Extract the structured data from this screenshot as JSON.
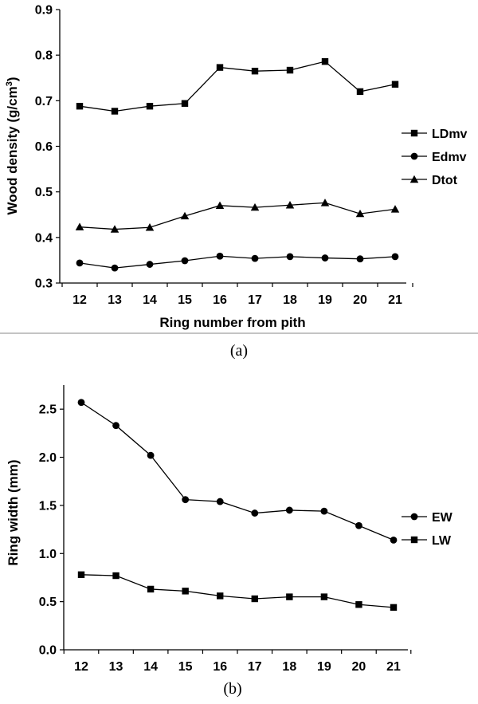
{
  "chart_data": [
    {
      "type": "line",
      "caption": "(a)",
      "xlabel": "Ring number from pith",
      "ylabel": "Wood density (g/cm",
      "ylabel_sup": "3",
      "ylabel_close": ")",
      "categories": [
        "12",
        "13",
        "14",
        "15",
        "16",
        "17",
        "18",
        "19",
        "20",
        "21"
      ],
      "ylim": [
        0.3,
        0.9
      ],
      "yticks": [
        "0.3",
        "0.4",
        "0.5",
        "0.6",
        "0.7",
        "0.8",
        "0.9"
      ],
      "grid": false,
      "legend_position": "right",
      "series": [
        {
          "name": "LDmv",
          "marker": "square",
          "values": [
            0.688,
            0.677,
            0.688,
            0.694,
            0.773,
            0.765,
            0.767,
            0.786,
            0.72,
            0.736
          ]
        },
        {
          "name": "Edmv",
          "marker": "circle",
          "values": [
            0.344,
            0.333,
            0.341,
            0.349,
            0.359,
            0.354,
            0.358,
            0.355,
            0.353,
            0.358
          ]
        },
        {
          "name": "Dtot",
          "marker": "triangle",
          "values": [
            0.423,
            0.418,
            0.422,
            0.447,
            0.47,
            0.466,
            0.471,
            0.476,
            0.452,
            0.462
          ]
        }
      ]
    },
    {
      "type": "line",
      "caption": "(b)",
      "xlabel": "",
      "ylabel": "Ring width (mm)",
      "categories": [
        "12",
        "13",
        "14",
        "15",
        "16",
        "17",
        "18",
        "19",
        "20",
        "21"
      ],
      "ylim": [
        0.0,
        2.75
      ],
      "yticks": [
        "0.0",
        "0.5",
        "1.0",
        "1.5",
        "2.0",
        "2.5"
      ],
      "grid": false,
      "legend_position": "right",
      "series": [
        {
          "name": "EW",
          "marker": "circle",
          "values": [
            2.57,
            2.33,
            2.02,
            1.56,
            1.54,
            1.42,
            1.45,
            1.44,
            1.29,
            1.14
          ]
        },
        {
          "name": "LW",
          "marker": "square",
          "values": [
            0.78,
            0.77,
            0.63,
            0.61,
            0.56,
            0.53,
            0.55,
            0.55,
            0.47,
            0.44
          ]
        }
      ]
    }
  ]
}
